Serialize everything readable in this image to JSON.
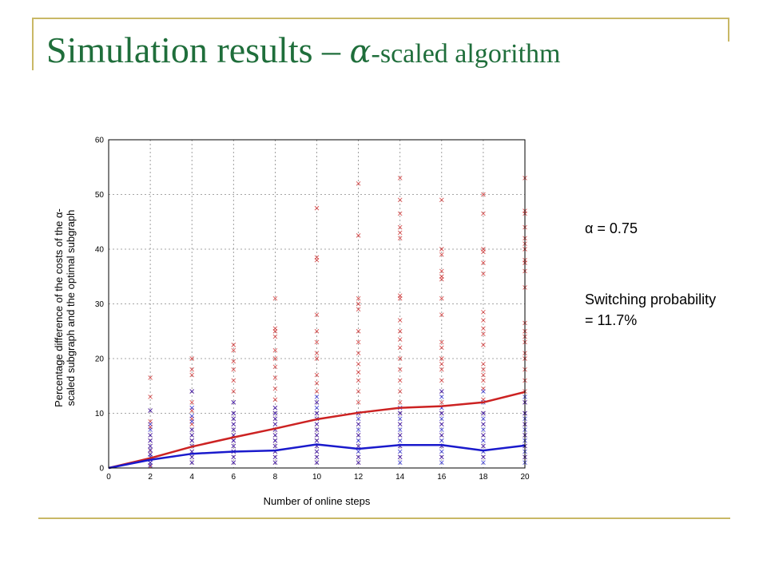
{
  "title": {
    "prefix": "Simulation results – ",
    "alpha_symbol": "α",
    "suffix": "-scaled algorithm"
  },
  "notes": {
    "alpha": "α = 0.75",
    "switching": "Switching probability\n= 11.7%"
  },
  "colors": {
    "accent_gold": "#c9b866",
    "title_green": "#1f6e3b",
    "red_series": "#cc2222",
    "blue_series": "#1a1acc"
  },
  "chart_data": {
    "type": "line",
    "xlabel": "Number of online steps",
    "ylabel_lines": [
      "Percentage difference of the costs of the α-",
      "scaled subgraph and the optimal subgraph"
    ],
    "xlim": [
      0,
      20
    ],
    "ylim": [
      0,
      60
    ],
    "xticks": [
      0,
      2,
      4,
      6,
      8,
      10,
      12,
      14,
      16,
      18,
      20
    ],
    "yticks": [
      0,
      10,
      20,
      30,
      40,
      50,
      60
    ],
    "grid": true,
    "series": [
      {
        "color": "#cc2222",
        "x": [
          0,
          2,
          4,
          6,
          8,
          10,
          12,
          14,
          16,
          18,
          20
        ],
        "y": [
          0,
          1.8,
          3.9,
          5.6,
          7.2,
          8.9,
          10.1,
          11.0,
          11.3,
          12.0,
          13.9
        ]
      },
      {
        "color": "#1a1acc",
        "x": [
          0,
          2,
          4,
          6,
          8,
          10,
          12,
          14,
          16,
          18,
          20
        ],
        "y": [
          0,
          1.5,
          2.6,
          3.0,
          3.2,
          4.3,
          3.5,
          4.2,
          4.2,
          3.2,
          4.1
        ]
      }
    ],
    "scatter": [
      {
        "color": "#cc2222",
        "points": [
          [
            2,
            16.5
          ],
          [
            2,
            13
          ],
          [
            2,
            10.5
          ],
          [
            2,
            8.5
          ],
          [
            2,
            7.5
          ],
          [
            2,
            6
          ],
          [
            2,
            5
          ],
          [
            2,
            4
          ],
          [
            2,
            3.2
          ],
          [
            2,
            2.5
          ],
          [
            2,
            1
          ],
          [
            2,
            0.3
          ],
          [
            4,
            20
          ],
          [
            4,
            18
          ],
          [
            4,
            17
          ],
          [
            4,
            14
          ],
          [
            4,
            12
          ],
          [
            4,
            10.5
          ],
          [
            4,
            9
          ],
          [
            4,
            8
          ],
          [
            4,
            7
          ],
          [
            4,
            6
          ],
          [
            4,
            5
          ],
          [
            4,
            4
          ],
          [
            4,
            3
          ],
          [
            4,
            2
          ],
          [
            4,
            1
          ],
          [
            6,
            22.5
          ],
          [
            6,
            21.5
          ],
          [
            6,
            19.5
          ],
          [
            6,
            18
          ],
          [
            6,
            16
          ],
          [
            6,
            14
          ],
          [
            6,
            12
          ],
          [
            6,
            10
          ],
          [
            6,
            9
          ],
          [
            6,
            8
          ],
          [
            6,
            7
          ],
          [
            6,
            6
          ],
          [
            6,
            5
          ],
          [
            6,
            4
          ],
          [
            6,
            3
          ],
          [
            6,
            2
          ],
          [
            6,
            1
          ],
          [
            8,
            31
          ],
          [
            8,
            25.5
          ],
          [
            8,
            25
          ],
          [
            8,
            24
          ],
          [
            8,
            21.5
          ],
          [
            8,
            20
          ],
          [
            8,
            18.5
          ],
          [
            8,
            16.5
          ],
          [
            8,
            14.5
          ],
          [
            8,
            12.5
          ],
          [
            8,
            11
          ],
          [
            8,
            10
          ],
          [
            8,
            9
          ],
          [
            8,
            8
          ],
          [
            8,
            7
          ],
          [
            8,
            6
          ],
          [
            8,
            5
          ],
          [
            8,
            4
          ],
          [
            8,
            3
          ],
          [
            8,
            2
          ],
          [
            8,
            1
          ],
          [
            10,
            47.5
          ],
          [
            10,
            38.5
          ],
          [
            10,
            38
          ],
          [
            10,
            28
          ],
          [
            10,
            25
          ],
          [
            10,
            23
          ],
          [
            10,
            21
          ],
          [
            10,
            20
          ],
          [
            10,
            17
          ],
          [
            10,
            15.5
          ],
          [
            10,
            14
          ],
          [
            10,
            12
          ],
          [
            10,
            10
          ],
          [
            10,
            9
          ],
          [
            10,
            8
          ],
          [
            10,
            7
          ],
          [
            10,
            6
          ],
          [
            10,
            5
          ],
          [
            10,
            4
          ],
          [
            10,
            3
          ],
          [
            10,
            2
          ],
          [
            10,
            1
          ],
          [
            12,
            52
          ],
          [
            12,
            42.5
          ],
          [
            12,
            31
          ],
          [
            12,
            30
          ],
          [
            12,
            29
          ],
          [
            12,
            25
          ],
          [
            12,
            23
          ],
          [
            12,
            21
          ],
          [
            12,
            19
          ],
          [
            12,
            17.5
          ],
          [
            12,
            16
          ],
          [
            12,
            14
          ],
          [
            12,
            12
          ],
          [
            12,
            10
          ],
          [
            12,
            8
          ],
          [
            12,
            6
          ],
          [
            12,
            4
          ],
          [
            12,
            2
          ],
          [
            12,
            1
          ],
          [
            14,
            53
          ],
          [
            14,
            49
          ],
          [
            14,
            46.5
          ],
          [
            14,
            44
          ],
          [
            14,
            43
          ],
          [
            14,
            42
          ],
          [
            14,
            31.5
          ],
          [
            14,
            31
          ],
          [
            14,
            27
          ],
          [
            14,
            25
          ],
          [
            14,
            23.5
          ],
          [
            14,
            22
          ],
          [
            14,
            20
          ],
          [
            14,
            18
          ],
          [
            14,
            16
          ],
          [
            14,
            14
          ],
          [
            14,
            12
          ],
          [
            14,
            10
          ],
          [
            14,
            8
          ],
          [
            14,
            6
          ],
          [
            14,
            4
          ],
          [
            14,
            2
          ],
          [
            16,
            49
          ],
          [
            16,
            40
          ],
          [
            16,
            39
          ],
          [
            16,
            36
          ],
          [
            16,
            35
          ],
          [
            16,
            34.5
          ],
          [
            16,
            31
          ],
          [
            16,
            28
          ],
          [
            16,
            23
          ],
          [
            16,
            22
          ],
          [
            16,
            20
          ],
          [
            16,
            19
          ],
          [
            16,
            18
          ],
          [
            16,
            16
          ],
          [
            16,
            14
          ],
          [
            16,
            12
          ],
          [
            16,
            10
          ],
          [
            16,
            8
          ],
          [
            16,
            6
          ],
          [
            16,
            4
          ],
          [
            16,
            2
          ],
          [
            18,
            50
          ],
          [
            18,
            46.5
          ],
          [
            18,
            40
          ],
          [
            18,
            39.5
          ],
          [
            18,
            37.5
          ],
          [
            18,
            35.5
          ],
          [
            18,
            28.5
          ],
          [
            18,
            27
          ],
          [
            18,
            25.5
          ],
          [
            18,
            24.5
          ],
          [
            18,
            22.5
          ],
          [
            18,
            19
          ],
          [
            18,
            18
          ],
          [
            18,
            17
          ],
          [
            18,
            16
          ],
          [
            18,
            14.5
          ],
          [
            18,
            12.5
          ],
          [
            18,
            10
          ],
          [
            18,
            8
          ],
          [
            18,
            6
          ],
          [
            18,
            4
          ],
          [
            18,
            2
          ],
          [
            20,
            53
          ],
          [
            20,
            47
          ],
          [
            20,
            46.5
          ],
          [
            20,
            44
          ],
          [
            20,
            42
          ],
          [
            20,
            41
          ],
          [
            20,
            40
          ],
          [
            20,
            38
          ],
          [
            20,
            37.5
          ],
          [
            20,
            36
          ],
          [
            20,
            33
          ],
          [
            20,
            26.5
          ],
          [
            20,
            25
          ],
          [
            20,
            24
          ],
          [
            20,
            23
          ],
          [
            20,
            21
          ],
          [
            20,
            20
          ],
          [
            20,
            18
          ],
          [
            20,
            16
          ],
          [
            20,
            14
          ],
          [
            20,
            12
          ],
          [
            20,
            10
          ],
          [
            20,
            8
          ],
          [
            20,
            6
          ],
          [
            20,
            4
          ],
          [
            20,
            2
          ]
        ]
      },
      {
        "color": "#1a1acc",
        "points": [
          [
            2,
            10.5
          ],
          [
            2,
            8
          ],
          [
            2,
            7
          ],
          [
            2,
            6
          ],
          [
            2,
            5
          ],
          [
            2,
            4
          ],
          [
            2,
            3.3
          ],
          [
            2,
            2.5
          ],
          [
            2,
            2
          ],
          [
            2,
            1.5
          ],
          [
            2,
            1
          ],
          [
            2,
            0.5
          ],
          [
            4,
            14
          ],
          [
            4,
            11
          ],
          [
            4,
            9.5
          ],
          [
            4,
            8.5
          ],
          [
            4,
            7
          ],
          [
            4,
            6
          ],
          [
            4,
            5
          ],
          [
            4,
            4
          ],
          [
            4,
            3
          ],
          [
            4,
            2
          ],
          [
            4,
            1
          ],
          [
            6,
            12
          ],
          [
            6,
            10
          ],
          [
            6,
            9
          ],
          [
            6,
            8
          ],
          [
            6,
            7
          ],
          [
            6,
            6
          ],
          [
            6,
            5
          ],
          [
            6,
            4
          ],
          [
            6,
            3
          ],
          [
            6,
            2
          ],
          [
            6,
            1
          ],
          [
            8,
            11
          ],
          [
            8,
            10
          ],
          [
            8,
            9
          ],
          [
            8,
            8
          ],
          [
            8,
            7
          ],
          [
            8,
            6
          ],
          [
            8,
            5
          ],
          [
            8,
            4
          ],
          [
            8,
            3
          ],
          [
            8,
            2
          ],
          [
            8,
            1
          ],
          [
            10,
            13
          ],
          [
            10,
            12
          ],
          [
            10,
            11
          ],
          [
            10,
            10
          ],
          [
            10,
            9
          ],
          [
            10,
            8
          ],
          [
            10,
            7
          ],
          [
            10,
            6
          ],
          [
            10,
            5
          ],
          [
            10,
            4
          ],
          [
            10,
            3
          ],
          [
            10,
            2
          ],
          [
            10,
            1
          ],
          [
            12,
            10
          ],
          [
            12,
            9
          ],
          [
            12,
            8
          ],
          [
            12,
            7
          ],
          [
            12,
            6
          ],
          [
            12,
            5
          ],
          [
            12,
            4
          ],
          [
            12,
            3
          ],
          [
            12,
            2
          ],
          [
            12,
            1
          ],
          [
            14,
            11
          ],
          [
            14,
            10
          ],
          [
            14,
            9
          ],
          [
            14,
            8
          ],
          [
            14,
            7
          ],
          [
            14,
            6
          ],
          [
            14,
            5
          ],
          [
            14,
            4
          ],
          [
            14,
            3
          ],
          [
            14,
            2
          ],
          [
            14,
            1
          ],
          [
            16,
            14
          ],
          [
            16,
            13
          ],
          [
            16,
            11
          ],
          [
            16,
            10
          ],
          [
            16,
            9
          ],
          [
            16,
            8
          ],
          [
            16,
            7
          ],
          [
            16,
            6
          ],
          [
            16,
            5
          ],
          [
            16,
            4
          ],
          [
            16,
            3
          ],
          [
            16,
            2
          ],
          [
            16,
            1
          ],
          [
            18,
            14
          ],
          [
            18,
            12
          ],
          [
            18,
            10
          ],
          [
            18,
            9
          ],
          [
            18,
            8
          ],
          [
            18,
            7
          ],
          [
            18,
            6
          ],
          [
            18,
            5
          ],
          [
            18,
            4
          ],
          [
            18,
            3
          ],
          [
            18,
            2
          ],
          [
            18,
            1
          ],
          [
            20,
            13
          ],
          [
            20,
            12
          ],
          [
            20,
            10
          ],
          [
            20,
            9
          ],
          [
            20,
            8
          ],
          [
            20,
            7
          ],
          [
            20,
            6
          ],
          [
            20,
            5
          ],
          [
            20,
            4
          ],
          [
            20,
            3
          ],
          [
            20,
            2
          ],
          [
            20,
            1
          ]
        ]
      }
    ]
  }
}
